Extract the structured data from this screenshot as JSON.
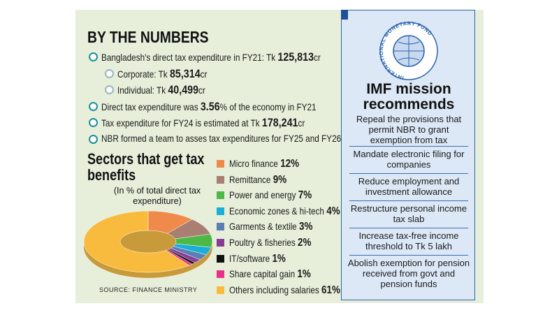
{
  "header": {
    "title": "BY THE NUMBERS"
  },
  "bullets": [
    {
      "before": "Bangladesh's direct tax expenditure in FY21: Tk ",
      "bold": "125,813",
      "after": "cr"
    },
    {
      "before": "Corporate: Tk ",
      "bold": "85,314",
      "after": "cr"
    },
    {
      "before": "Individual: Tk ",
      "bold": "40,499",
      "after": "cr"
    },
    {
      "before": "Direct tax expenditure was ",
      "bold": "3.56",
      "after": "% of the economy in FY21"
    },
    {
      "before": "Tax expenditure for FY24 is estimated at Tk ",
      "bold": "178,241",
      "after": "cr"
    },
    {
      "before": "NBR formed a team to asses tax expenditures for FY25 and FY26",
      "bold": "",
      "after": ""
    }
  ],
  "chart_data": {
    "type": "pie",
    "title": "Sectors that get tax benefits",
    "subtitle": "(In % of total direct tax expenditure)",
    "source": "SOURCE: FINANCE MINISTRY",
    "categories": [
      "Micro finance",
      "Remittance",
      "Power and energy",
      "Economic zones & hi-tech",
      "Garments & textile",
      "Poultry & fisheries",
      "IT/software",
      "Share capital gain",
      "Others including salaries"
    ],
    "values": [
      12,
      9,
      7,
      4,
      3,
      2,
      1,
      1,
      61
    ],
    "value_labels": [
      "12%",
      "9%",
      "7%",
      "4%",
      "3%",
      "2%",
      "1%",
      "1%",
      "61%"
    ],
    "colors": [
      "#f08a4b",
      "#a97f72",
      "#4db848",
      "#1aafd6",
      "#5b7fb4",
      "#8a3c95",
      "#111111",
      "#e8318a",
      "#f9bb3d"
    ]
  },
  "imf": {
    "logo_text": "INTERNATIONAL MONETARY FUND",
    "title": "IMF mission recommends",
    "items": [
      "Repeal the provisions that permit NBR to grant exemption from tax",
      "Mandate electronic filing for companies",
      "Reduce employment and investment allowance",
      "Restructure personal income tax slab",
      "Increase tax-free income threshold to Tk 5 lakh",
      "Abolish exemption for pension received from govt and pension funds"
    ]
  }
}
